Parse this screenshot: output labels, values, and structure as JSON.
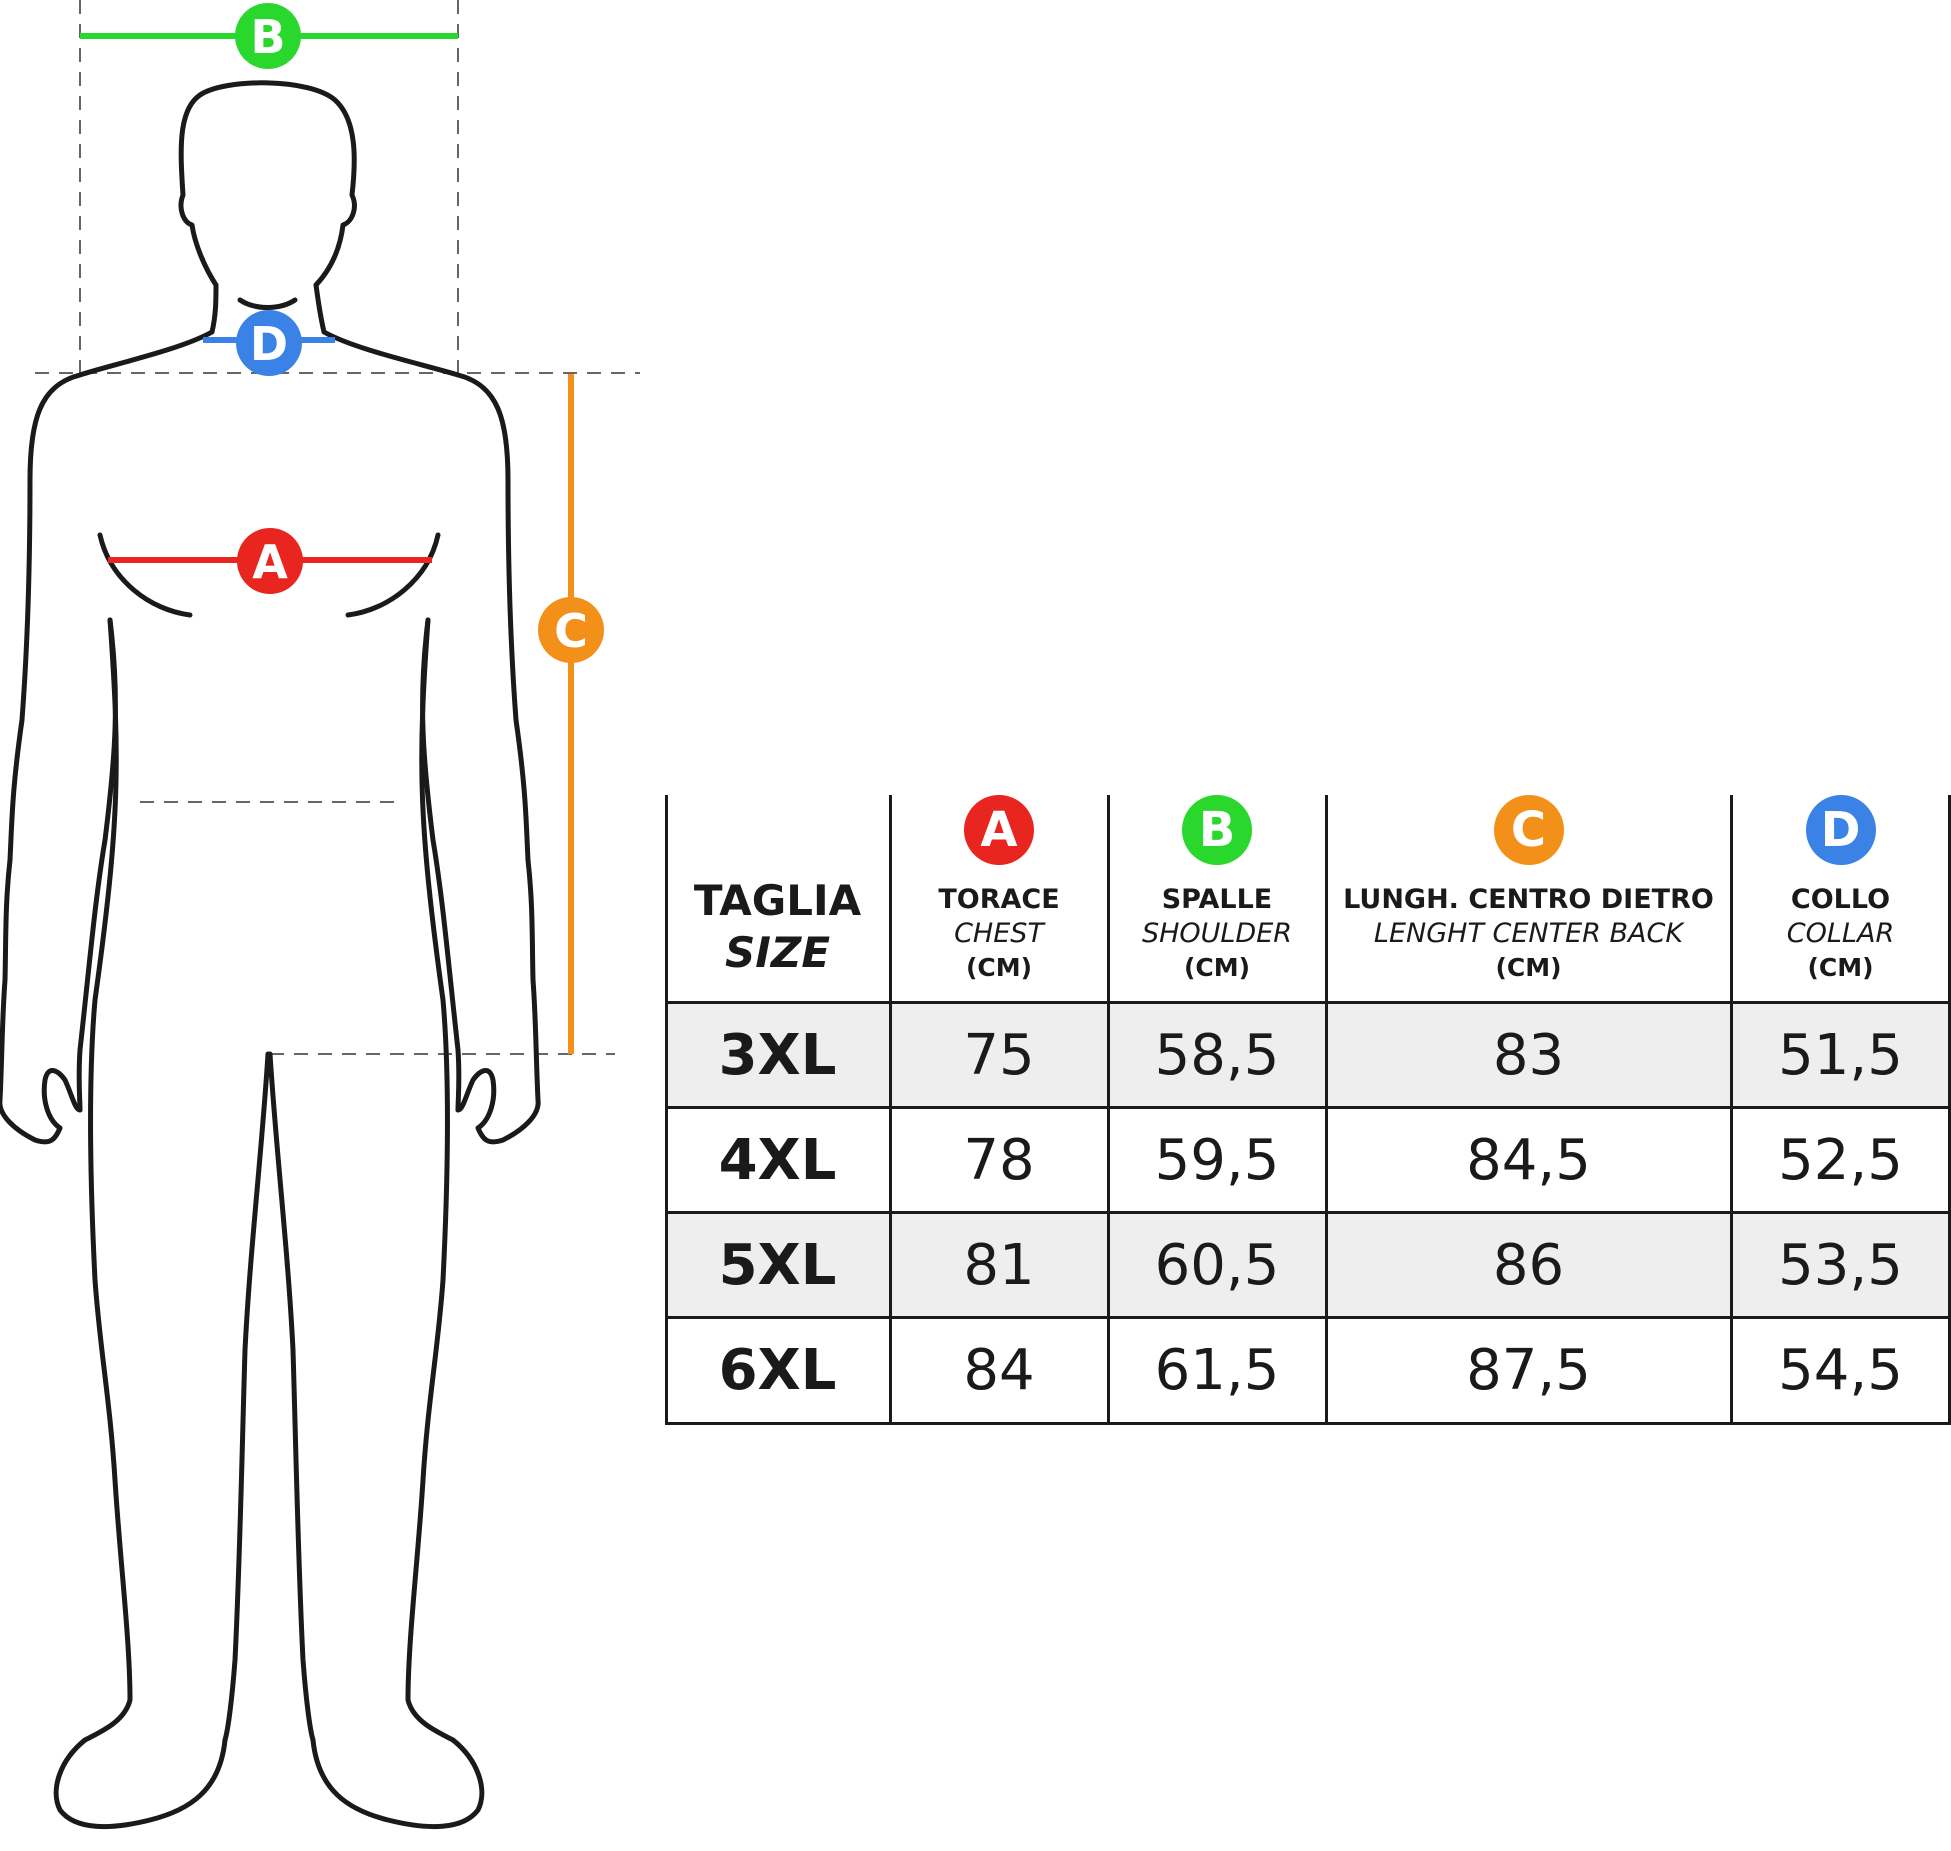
{
  "colors": {
    "A": "#e8261f",
    "B": "#2ad72d",
    "C": "#f39019",
    "D": "#3b82e6",
    "outline": "#1a1a1a",
    "guide": "#666666",
    "row_shade": "#eeeeee"
  },
  "markers": {
    "A": "A",
    "B": "B",
    "C": "C",
    "D": "D"
  },
  "table": {
    "size_header": {
      "it": "TAGLIA",
      "en": "SIZE"
    },
    "columns": [
      {
        "key": "A",
        "badge": "A",
        "it": "TORACE",
        "en": "CHEST",
        "unit": "(CM)"
      },
      {
        "key": "B",
        "badge": "B",
        "it": "SPALLE",
        "en": "SHOULDER",
        "unit": "(CM)"
      },
      {
        "key": "C",
        "badge": "C",
        "it": "LUNGH. CENTRO DIETRO",
        "en": "LENGHT CENTER BACK",
        "unit": "(CM)"
      },
      {
        "key": "D",
        "badge": "D",
        "it": "COLLO",
        "en": "COLLAR",
        "unit": "(CM)"
      }
    ],
    "rows": [
      {
        "size": "3XL",
        "values": [
          "75",
          "58,5",
          "83",
          "51,5"
        ]
      },
      {
        "size": "4XL",
        "values": [
          "78",
          "59,5",
          "84,5",
          "52,5"
        ]
      },
      {
        "size": "5XL",
        "values": [
          "81",
          "60,5",
          "86",
          "53,5"
        ]
      },
      {
        "size": "6XL",
        "values": [
          "84",
          "61,5",
          "87,5",
          "54,5"
        ]
      }
    ]
  }
}
